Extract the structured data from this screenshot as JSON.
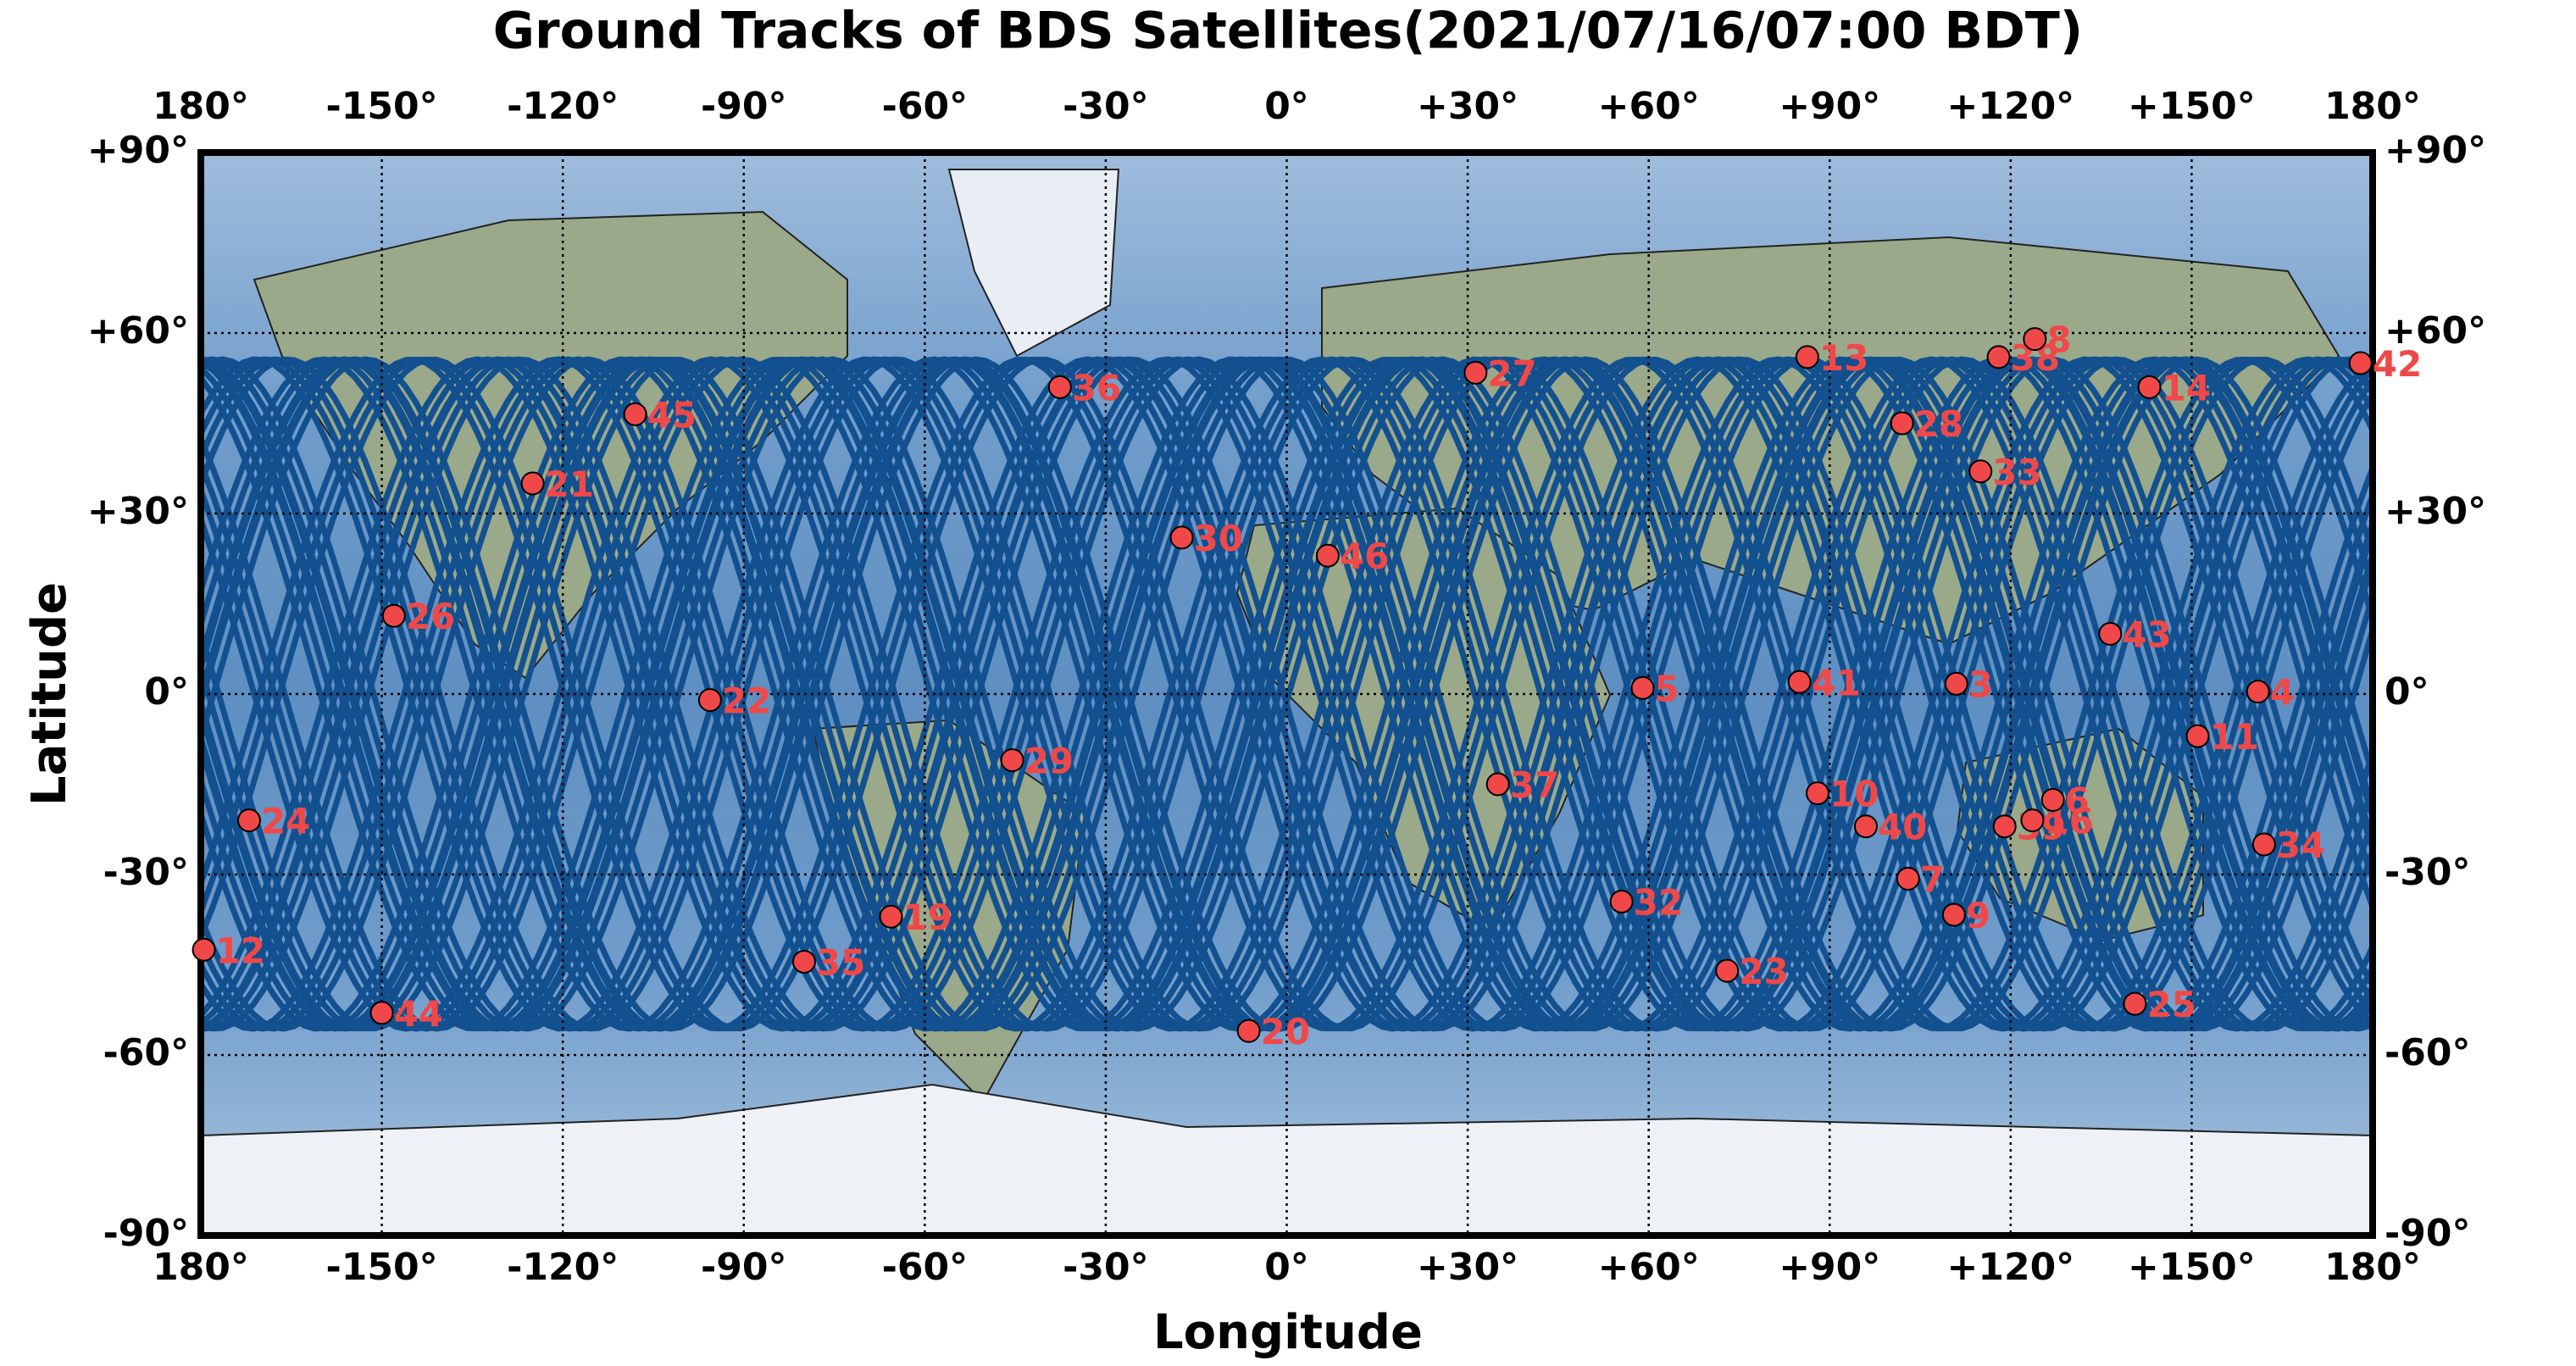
{
  "chart_data": {
    "type": "scatter",
    "title": "Ground Tracks of BDS Satellites(2021/07/16/07:00 BDT)",
    "x_label": "Longitude",
    "y_label": "Latitude",
    "xlim": [
      -180,
      180
    ],
    "ylim": [
      -90,
      90
    ],
    "xticks": [
      {
        "value": -180,
        "label": "180°"
      },
      {
        "value": -150,
        "label": "-150°"
      },
      {
        "value": -120,
        "label": "-120°"
      },
      {
        "value": -90,
        "label": "-90°"
      },
      {
        "value": -60,
        "label": "-60°"
      },
      {
        "value": -30,
        "label": "-30°"
      },
      {
        "value": 0,
        "label": "0°"
      },
      {
        "value": 30,
        "label": "+30°"
      },
      {
        "value": 60,
        "label": "+60°"
      },
      {
        "value": 90,
        "label": "+90°"
      },
      {
        "value": 120,
        "label": "+120°"
      },
      {
        "value": 150,
        "label": "+150°"
      },
      {
        "value": 180,
        "label": "180°"
      }
    ],
    "yticks": [
      {
        "value": -90,
        "label": "-90°"
      },
      {
        "value": -60,
        "label": "-60°"
      },
      {
        "value": -30,
        "label": "-30°"
      },
      {
        "value": 0,
        "label": "0°"
      },
      {
        "value": 30,
        "label": "+30°"
      },
      {
        "value": 60,
        "label": "+60°"
      },
      {
        "value": 90,
        "label": "+90°"
      }
    ],
    "grid": true,
    "color": "#f04848",
    "labels": [
      "12",
      "24",
      "26",
      "44",
      "21",
      "45",
      "22",
      "35",
      "19",
      "29",
      "36",
      "30",
      "20",
      "46",
      "27",
      "37",
      "5",
      "32",
      "23",
      "13",
      "10",
      "40",
      "41",
      "28",
      "3",
      "7",
      "9",
      "33",
      "38",
      "8",
      "39",
      "16",
      "6",
      "43",
      "14",
      "11",
      "4",
      "34",
      "25",
      "42"
    ],
    "x": [
      -179.5,
      -172,
      -148,
      -150,
      -125,
      -108,
      -95.6,
      -80,
      -65.6,
      -45.5,
      -37.6,
      -17.4,
      -6.3,
      6.8,
      31.3,
      35,
      59,
      55.5,
      73,
      86.3,
      88,
      96,
      85,
      102,
      111,
      103,
      110.6,
      115,
      118,
      124,
      119,
      123.6,
      127,
      136.5,
      143,
      151,
      161,
      162,
      140.6,
      178
    ],
    "y": [
      -42.5,
      -21,
      13,
      -53,
      35,
      46.5,
      -1,
      -44.5,
      -37,
      -11,
      51,
      26,
      -56,
      23,
      53.4,
      -15,
      1,
      -34.5,
      -46,
      56,
      -16.5,
      -22,
      2,
      45,
      1.7,
      -30.7,
      -36.7,
      37,
      56,
      59,
      -22,
      -21,
      -17.6,
      10,
      51,
      -7,
      0.4,
      -25,
      -51.5,
      55
    ]
  }
}
